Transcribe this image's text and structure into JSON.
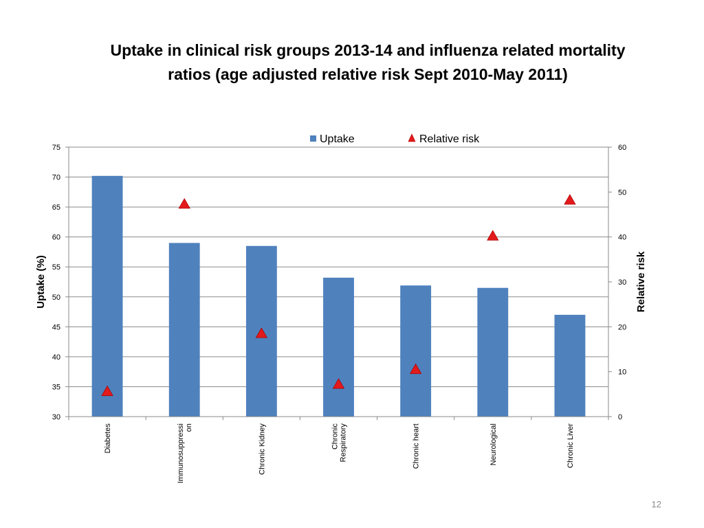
{
  "slide": {
    "title_line1": "Uptake in clinical risk groups 2013-14 and influenza related mortality",
    "title_line2": "ratios (age adjusted relative risk Sept 2010-May 2011)",
    "page_number": "12"
  },
  "chart_data": {
    "type": "bar",
    "title": "",
    "categories": [
      "Diabetes",
      "Immunosuppressi on",
      "Chronic Kidney",
      "Chronic Respiratory",
      "Chronic heart",
      "Neurological",
      "Chronic Liver"
    ],
    "category_label_lines": [
      [
        "Diabetes"
      ],
      [
        "Immunosuppressi",
        "on"
      ],
      [
        "Chronic Kidney"
      ],
      [
        "Chronic",
        "Respiratory"
      ],
      [
        "Chronic heart"
      ],
      [
        "Neurological"
      ],
      [
        "Chronic Liver"
      ]
    ],
    "series": [
      {
        "name": "Uptake",
        "type": "bar",
        "axis": "left",
        "color": "#4f81bd",
        "values": [
          70.2,
          59.0,
          58.5,
          53.2,
          51.9,
          51.5,
          47.0
        ]
      },
      {
        "name": "Relative risk",
        "type": "scatter",
        "marker": "triangle",
        "axis": "right",
        "color": "#e31a1c",
        "values": [
          5.6,
          47.3,
          18.5,
          7.2,
          10.5,
          40.2,
          48.2
        ]
      }
    ],
    "ylabel": "Uptake (%)",
    "y2label": "Relative risk",
    "ylim": [
      30,
      75
    ],
    "y2lim": [
      0,
      60
    ],
    "yticks": [
      30,
      35,
      40,
      45,
      50,
      55,
      60,
      65,
      70,
      75
    ],
    "y2ticks": [
      0,
      10,
      20,
      30,
      40,
      50,
      60
    ],
    "grid": true,
    "legend": "top"
  }
}
